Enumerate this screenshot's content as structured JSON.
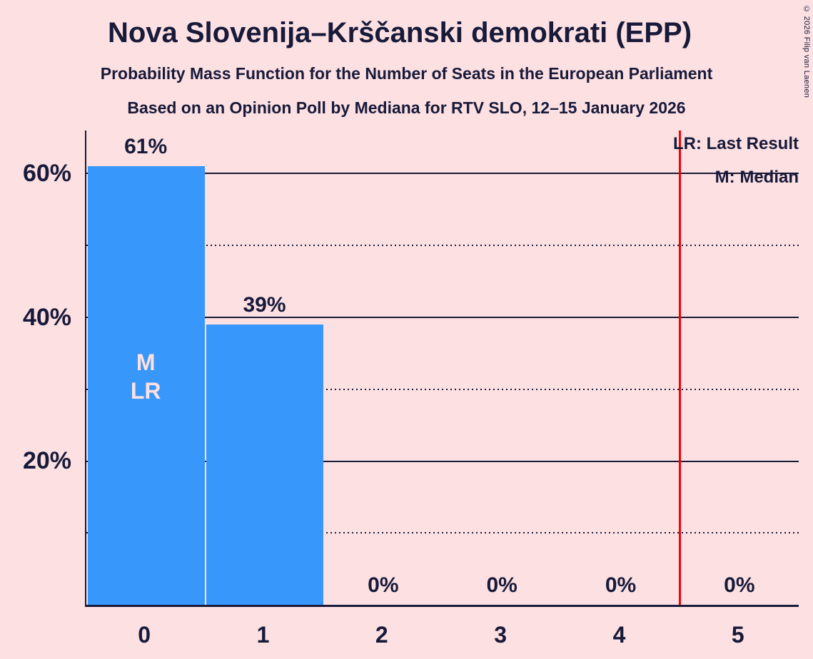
{
  "header": {
    "title": "Nova Slovenija–Krščanski demokrati (EPP)",
    "subtitle_line1": "Probability Mass Function for the Number of Seats in the European Parliament",
    "subtitle_line2": "Based on an Opinion Poll by Mediana for RTV SLO, 12–15 January 2026"
  },
  "copyright": "© 2026 Filip van Laenen",
  "legend": {
    "last_result_label": "LR: Last Result",
    "median_label": "M: Median"
  },
  "colors": {
    "background": "#fde0e2",
    "bar": "#3797fb",
    "text": "#171a39",
    "marker_line": "#f80000",
    "bar_annotation_text": "#fde0e2"
  },
  "chart_data": {
    "type": "bar",
    "categories": [
      "0",
      "1",
      "2",
      "3",
      "4",
      "5"
    ],
    "values": [
      61,
      39,
      0,
      0,
      0,
      0
    ],
    "value_labels": [
      "61%",
      "39%",
      "0%",
      "0%",
      "0%",
      "0%"
    ],
    "title": "Nova Slovenija–Krščanski demokrati (EPP)",
    "xlabel": "",
    "ylabel": "",
    "ylim": [
      0,
      66
    ],
    "y_ticks": [
      {
        "value": 60,
        "label": "60%"
      },
      {
        "value": 40,
        "label": "40%"
      },
      {
        "value": 20,
        "label": "20%"
      }
    ],
    "solid_gridlines": [
      20,
      40,
      60
    ],
    "dotted_gridlines": [
      10,
      30,
      50
    ],
    "legend_position": "top-right",
    "grid": true,
    "bar_annotations": [
      {
        "category_index": 0,
        "lines": [
          "M",
          "LR"
        ]
      }
    ],
    "median_seats": 0,
    "last_result_seats": 0,
    "marker_line_x": 4.5
  }
}
